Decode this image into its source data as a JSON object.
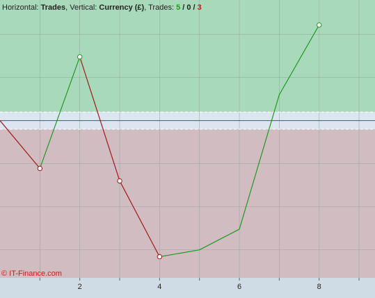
{
  "chart_data": {
    "type": "line",
    "title": [
      {
        "text": "Horizontal: "
      },
      {
        "text": "Trades",
        "bold": true
      },
      {
        "text": ", Vertical: "
      },
      {
        "text": "Currency (£)",
        "bold": true
      },
      {
        "text": ", Trades: "
      },
      {
        "text": "5",
        "bold": true,
        "color": "#1e9a1e"
      },
      {
        "text": " / ",
        "bold": true
      },
      {
        "text": "0",
        "bold": true
      },
      {
        "text": " / ",
        "bold": true
      },
      {
        "text": "3",
        "bold": true,
        "color": "#c01818"
      }
    ],
    "watermark": "© IT-Finance.com",
    "x": [
      0,
      1,
      2,
      3,
      4,
      5,
      6,
      7,
      8
    ],
    "series": [
      {
        "values": [
          0,
          -1.11,
          1.48,
          -1.4,
          -3.16,
          -3.0,
          -2.52,
          0.6,
          2.22
        ],
        "trade_points": [
          false,
          true,
          true,
          true,
          true,
          false,
          false,
          false,
          true
        ]
      }
    ],
    "up_color": "#1e9a1e",
    "down_color": "#a01818",
    "xlim": [
      0,
      9.4
    ],
    "ylim": [
      -3.65,
      2.8
    ],
    "xticks": [
      2,
      4,
      6,
      8
    ],
    "xgrid": [
      1,
      2,
      3,
      4,
      5,
      6,
      7,
      8,
      9
    ],
    "yticks": [
      -3,
      -2,
      -1,
      1,
      2
    ],
    "band": [
      -0.2,
      0.2
    ],
    "zone_colors": {
      "above": "#a9d9bb",
      "band": "#dde5f0",
      "below": "#d1bcc1"
    }
  }
}
